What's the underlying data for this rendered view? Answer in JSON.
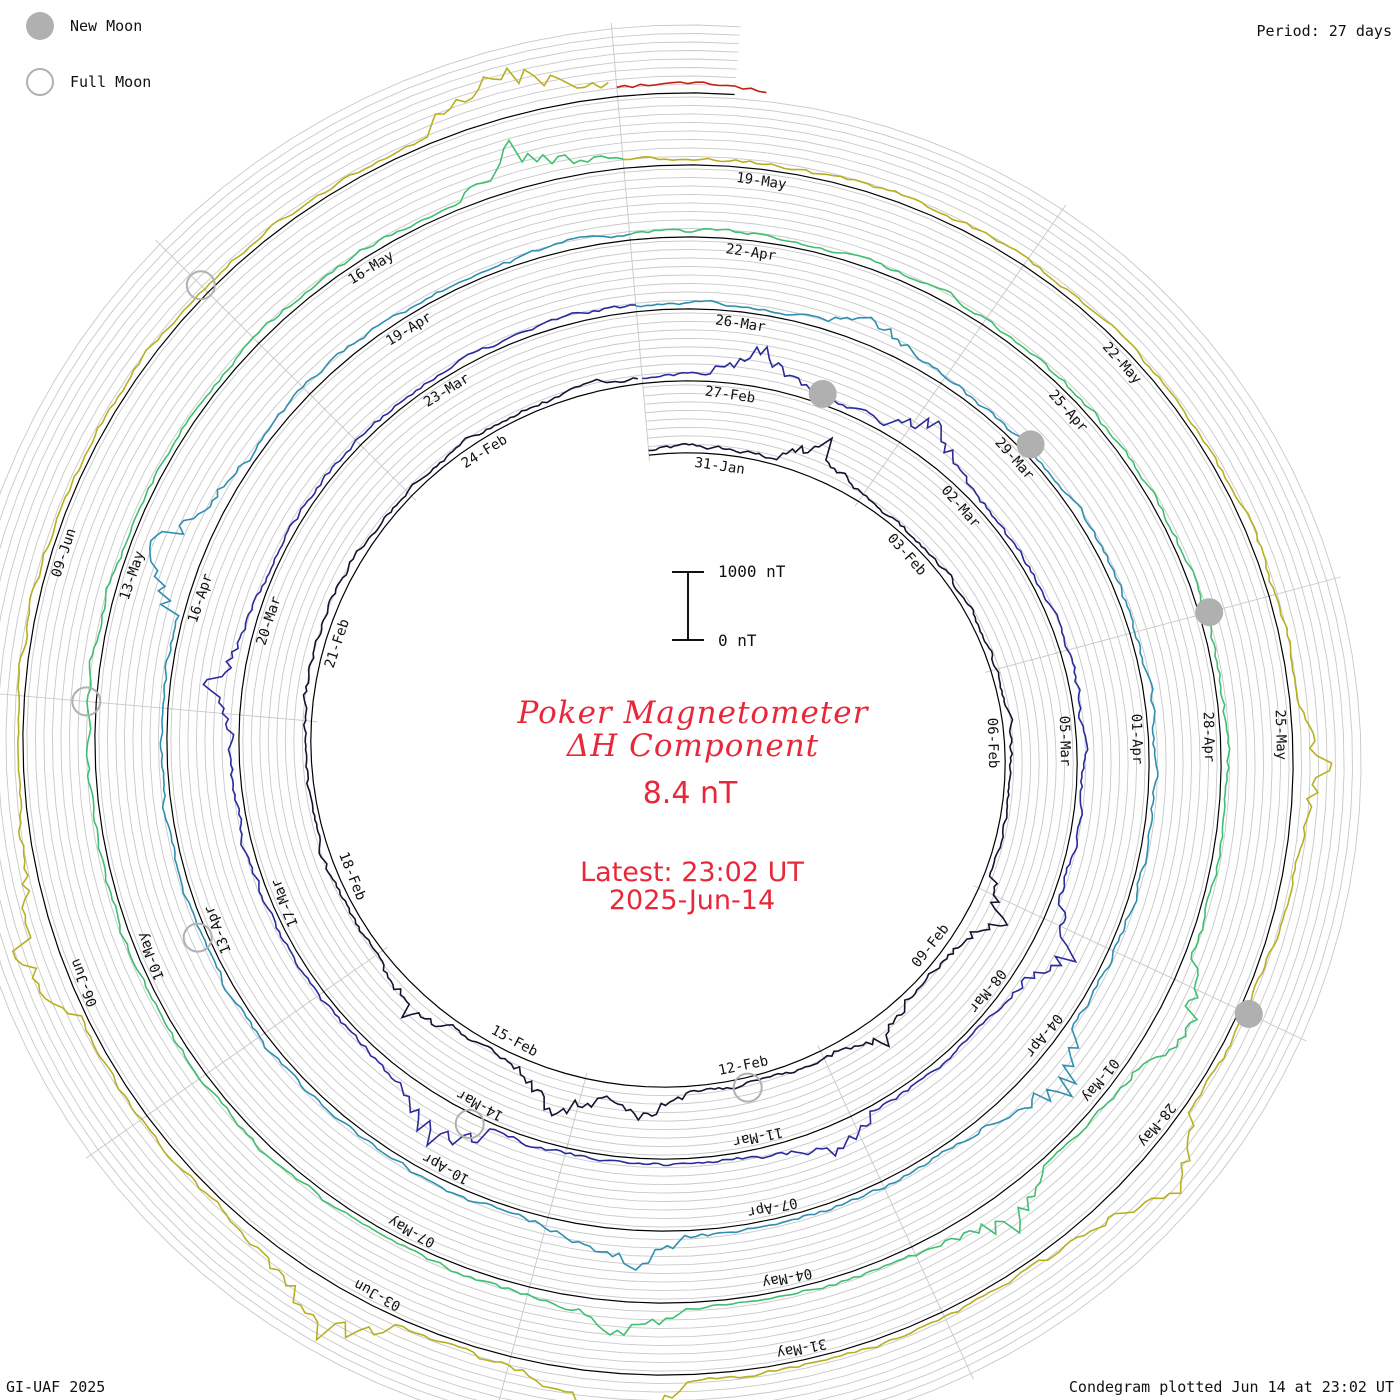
{
  "header": {
    "period": "Period: 27 days"
  },
  "legend": {
    "new_moon": "New Moon",
    "full_moon": "Full Moon"
  },
  "footer": {
    "credit": "GI-UAF 2025",
    "plotted": "Condegram plotted Jun 14 at 23:02 UT"
  },
  "title": {
    "line1": "Poker Magnetometer",
    "line2": "ΔH Component",
    "value": "8.4 nT",
    "latest": "Latest: 23:02 UT",
    "date": "2025-Jun-14"
  },
  "scale": {
    "top_label": "1000 nT",
    "bottom_label": "0 nT"
  },
  "colors": {
    "title": "#e8283a",
    "grid": "#c8c8c8",
    "baseline": "#000000",
    "moon": "#b0b0b0"
  },
  "chart_data": {
    "type": "condegram",
    "period_days": 27,
    "start_date": "2025-01-30",
    "end_date": "2025-06-14",
    "unit": "nT",
    "scale_bar_nT": 1000,
    "rotations": [
      {
        "index": 0,
        "color": "#1a1030",
        "tick_labels": [
          "31-Jan",
          "03-Feb",
          "06-Feb",
          "09-Feb",
          "12-Feb",
          "15-Feb",
          "18-Feb",
          "21-Feb",
          "24-Feb"
        ]
      },
      {
        "index": 1,
        "color": "#2a2a9c",
        "tick_labels": [
          "27-Feb",
          "02-Mar",
          "05-Mar",
          "08-Mar",
          "11-Mar",
          "14-Mar",
          "17-Mar",
          "20-Mar",
          "23-Mar"
        ]
      },
      {
        "index": 2,
        "color": "#2f8fb0",
        "tick_labels": [
          "26-Mar",
          "29-Mar",
          "01-Apr",
          "04-Apr",
          "07-Apr",
          "10-Apr",
          "13-Apr",
          "16-Apr",
          "19-Apr"
        ]
      },
      {
        "index": 3,
        "color": "#3fbf6f",
        "tick_labels": [
          "22-Apr",
          "25-Apr",
          "28-Apr",
          "01-May",
          "04-May",
          "07-May",
          "10-May",
          "13-May",
          "16-May"
        ]
      },
      {
        "index": 4,
        "color": "#b8b020",
        "tick_labels": [
          "19-May",
          "22-May",
          "25-May",
          "28-May",
          "31-May",
          "03-Jun",
          "06-Jun",
          "09-Jun"
        ]
      },
      {
        "index": 5,
        "color": "#c02010",
        "tick_labels": []
      }
    ],
    "activity_events": [
      {
        "date": "2025-02-01",
        "peak_nT": 600
      },
      {
        "date": "2025-02-08",
        "peak_nT": 500
      },
      {
        "date": "2025-02-10",
        "peak_nT": 350
      },
      {
        "date": "2025-02-13",
        "peak_nT": 450
      },
      {
        "date": "2025-02-14",
        "peak_nT": 700
      },
      {
        "date": "2025-02-16",
        "peak_nT": 400
      },
      {
        "date": "2025-02-27",
        "peak_nT": 500
      },
      {
        "date": "2025-03-01",
        "peak_nT": 600
      },
      {
        "date": "2025-03-07",
        "peak_nT": 650
      },
      {
        "date": "2025-03-10",
        "peak_nT": 500
      },
      {
        "date": "2025-03-14",
        "peak_nT": 800
      },
      {
        "date": "2025-03-19",
        "peak_nT": 450
      },
      {
        "date": "2025-03-27",
        "peak_nT": 400
      },
      {
        "date": "2025-04-04",
        "peak_nT": 700
      },
      {
        "date": "2025-04-08",
        "peak_nT": 600
      },
      {
        "date": "2025-04-16",
        "peak_nT": 900
      },
      {
        "date": "2025-04-30",
        "peak_nT": 550
      },
      {
        "date": "2025-05-02",
        "peak_nT": 500
      },
      {
        "date": "2025-05-05",
        "peak_nT": 450
      },
      {
        "date": "2025-05-17",
        "peak_nT": 600
      },
      {
        "date": "2025-05-25",
        "peak_nT": 500
      },
      {
        "date": "2025-05-28",
        "peak_nT": 800
      },
      {
        "date": "2025-06-01",
        "peak_nT": 900
      },
      {
        "date": "2025-06-03",
        "peak_nT": 800
      },
      {
        "date": "2025-06-06",
        "peak_nT": 700
      },
      {
        "date": "2025-06-13",
        "peak_nT": 850
      }
    ],
    "new_moons": [
      "2025-01-29",
      "2025-02-28",
      "2025-03-29",
      "2025-04-27",
      "2025-05-27"
    ],
    "full_moons": [
      "2025-02-12",
      "2025-03-14",
      "2025-04-13",
      "2025-05-12",
      "2025-06-11"
    ]
  }
}
